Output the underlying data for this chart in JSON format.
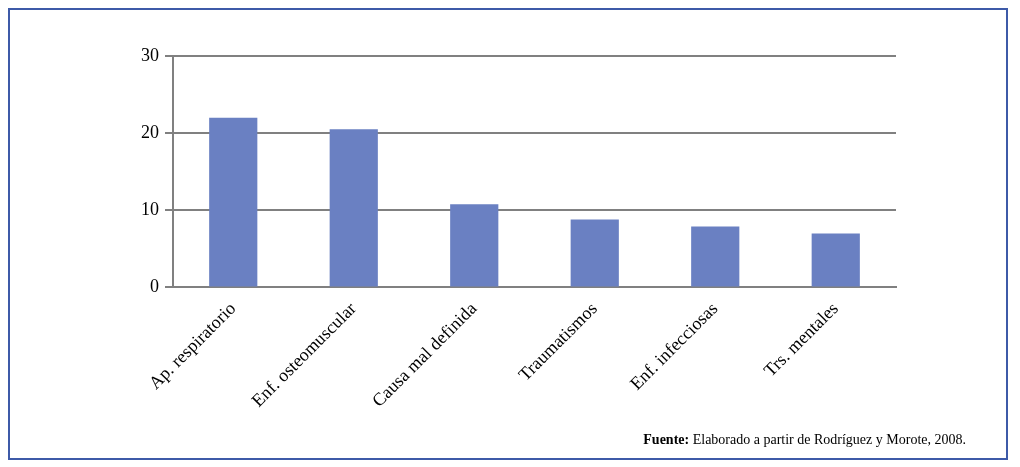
{
  "chart_data": {
    "type": "bar",
    "categories": [
      "Ap. respiratorio",
      "Enf. osteomuscular",
      "Causa mal definida",
      "Traumatismos",
      "Enf. infecciosas",
      "Trs. mentales"
    ],
    "values": [
      22,
      20.5,
      10.8,
      8.8,
      7.9,
      7
    ],
    "color": "#6a80c2",
    "ylim": [
      0,
      30
    ],
    "yticks": [
      0,
      10,
      20,
      30
    ],
    "grid": "y",
    "legend": false,
    "annotations": [
      "Fuente: Elaborado a partir de Rodríguez y Morote, 2008."
    ]
  }
}
